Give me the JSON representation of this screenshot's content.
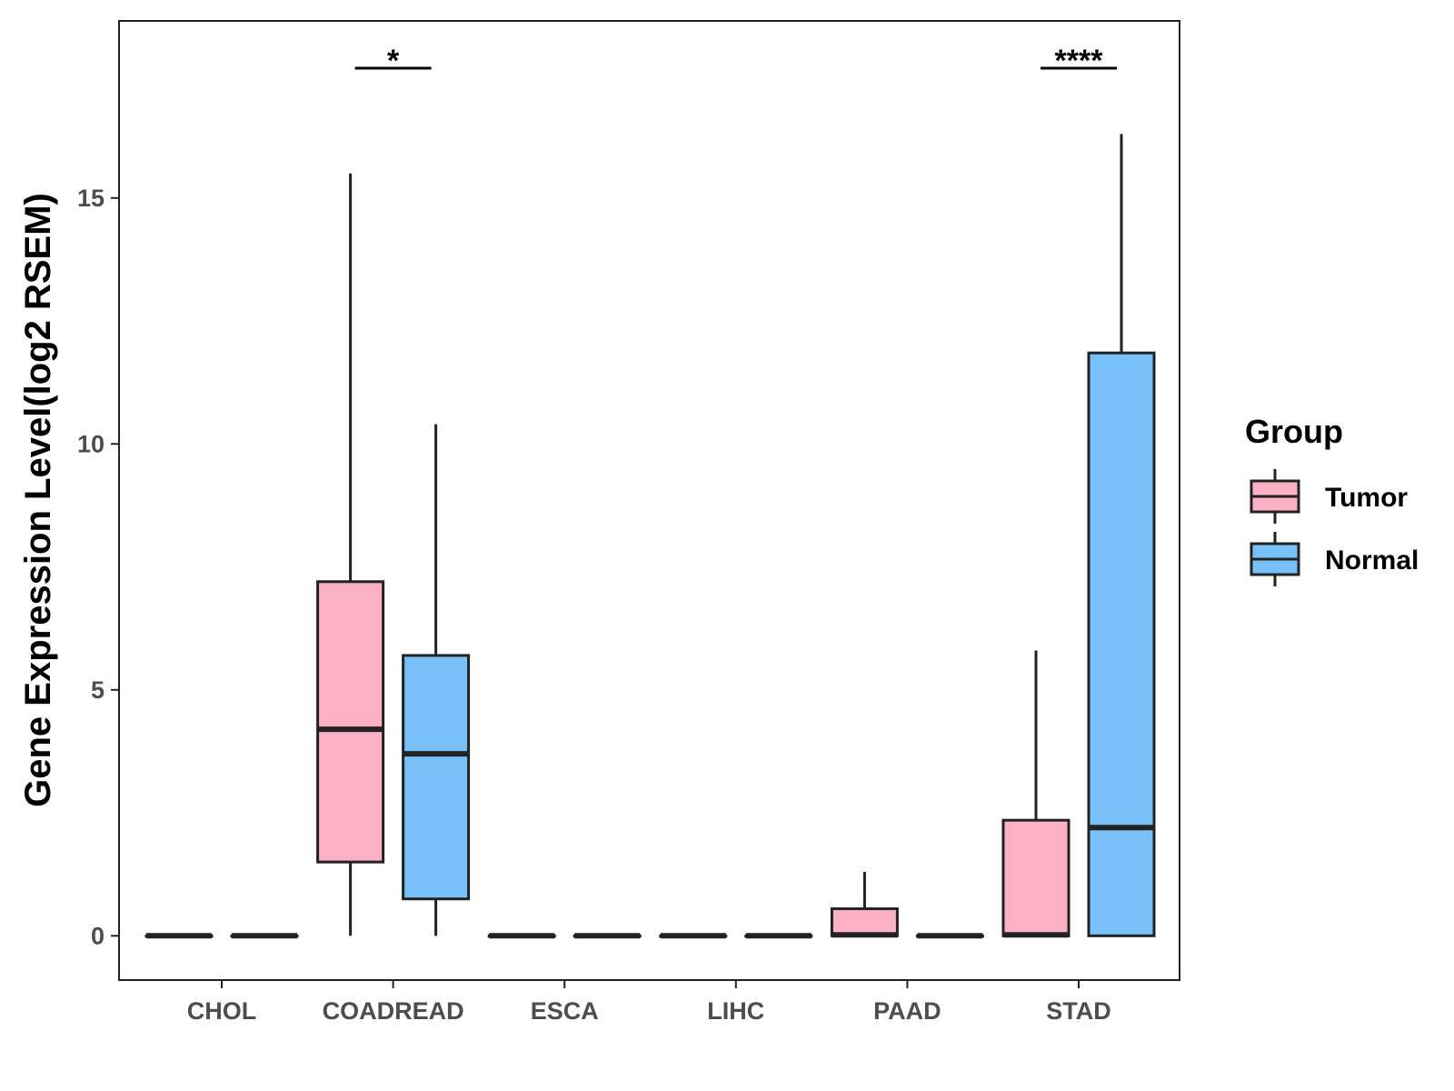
{
  "chart_data": {
    "type": "boxplot",
    "title": "",
    "xlabel": "",
    "ylabel": "Gene Expression Level(log2 RSEM)",
    "ylim": [
      -0.9,
      18.6
    ],
    "yticks": [
      0,
      5,
      10,
      15
    ],
    "categories": [
      "CHOL",
      "COADREAD",
      "ESCA",
      "LIHC",
      "PAAD",
      "STAD"
    ],
    "legend": {
      "title": "Group",
      "position": "right"
    },
    "series": [
      {
        "name": "Tumor",
        "color": "#FBB1C3",
        "boxes": [
          {
            "min": 0,
            "q1": 0,
            "median": 0,
            "q3": 0,
            "max": 0
          },
          {
            "min": 0,
            "q1": 1.5,
            "median": 4.2,
            "q3": 7.2,
            "max": 15.5
          },
          {
            "min": 0,
            "q1": 0,
            "median": 0,
            "q3": 0,
            "max": 0
          },
          {
            "min": 0,
            "q1": 0,
            "median": 0,
            "q3": 0,
            "max": 0
          },
          {
            "min": 0,
            "q1": 0,
            "median": 0.02,
            "q3": 0.55,
            "max": 1.3
          },
          {
            "min": 0,
            "q1": 0,
            "median": 0.02,
            "q3": 2.35,
            "max": 5.8
          }
        ]
      },
      {
        "name": "Normal",
        "color": "#77C1F8",
        "boxes": [
          {
            "min": 0,
            "q1": 0,
            "median": 0,
            "q3": 0,
            "max": 0
          },
          {
            "min": 0,
            "q1": 0.75,
            "median": 3.7,
            "q3": 5.7,
            "max": 10.4
          },
          {
            "min": 0,
            "q1": 0,
            "median": 0,
            "q3": 0,
            "max": 0
          },
          {
            "min": 0,
            "q1": 0,
            "median": 0,
            "q3": 0,
            "max": 0
          },
          {
            "min": 0,
            "q1": 0,
            "median": 0,
            "q3": 0,
            "max": 0
          },
          {
            "min": 0,
            "q1": 0,
            "median": 2.2,
            "q3": 11.85,
            "max": 16.3
          }
        ]
      }
    ],
    "annotations": [
      {
        "category": "COADREAD",
        "label": "*"
      },
      {
        "category": "STAD",
        "label": "****"
      }
    ]
  }
}
